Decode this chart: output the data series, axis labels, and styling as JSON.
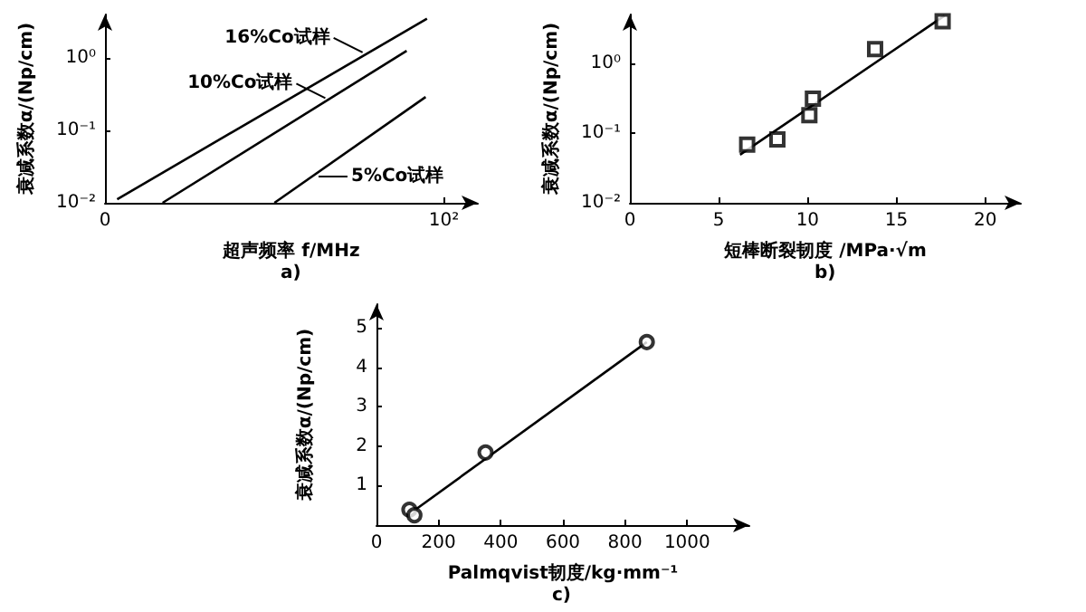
{
  "chart_data": [
    {
      "type": "line",
      "xlabel": "超声频率 f/MHz",
      "ylabel": "衰减系数α/(Np/cm)",
      "log": "y",
      "xlim": [
        0,
        110
      ],
      "ylim": [
        0.01,
        4
      ],
      "xticks": [
        0,
        {
          "value": 100,
          "label": "10²"
        }
      ],
      "yticks": [
        {
          "value": 0.01,
          "label": "10⁻²"
        },
        {
          "value": 0.1,
          "label": "10⁻¹"
        },
        {
          "value": 1,
          "label": "10⁰"
        }
      ],
      "series": [
        {
          "color": "#000000",
          "x": [
            3.6,
            95
          ],
          "values": [
            0.0112,
            3.5
          ]
        },
        {
          "color": "#000000",
          "x": [
            17,
            89
          ],
          "values": [
            0.01,
            1.26
          ]
        },
        {
          "color": "#000000",
          "x": [
            50,
            94.6
          ],
          "values": [
            0.01,
            0.29
          ]
        }
      ],
      "annotations": [
        {
          "text": "16%Co试样",
          "x": 76,
          "y": 1.2
        },
        {
          "text": "10%Co试样",
          "x": 65,
          "y": 0.28
        },
        {
          "text": "5%Co试样",
          "x": 63,
          "y": 0.023
        },
        "a)"
      ]
    },
    {
      "type": "scatter",
      "xlabel": "短棒断裂韧度 /MPa·√m",
      "ylabel": "衰减系数α/(Np/cm)",
      "log": "y",
      "xlim": [
        0,
        22
      ],
      "ylim": [
        0.01,
        5
      ],
      "xticks": [
        0,
        5,
        10,
        15,
        20
      ],
      "yticks": [
        {
          "value": 0.01,
          "label": "10⁻²"
        },
        {
          "value": 0.1,
          "label": "10⁻¹"
        },
        {
          "value": 1,
          "label": "10⁰"
        }
      ],
      "series": [
        {
          "marker": "square",
          "color": "#000000",
          "x": [
            6.6,
            8.3,
            10.1,
            10.3,
            13.8,
            17.6
          ],
          "values": [
            0.068,
            0.081,
            0.18,
            0.31,
            1.6,
            4.0
          ]
        },
        {
          "type": "line",
          "color": "#000000",
          "x": [
            6.2,
            17.7
          ],
          "values": [
            0.049,
            4.8
          ]
        }
      ],
      "annotations": [
        "b)"
      ]
    },
    {
      "type": "scatter",
      "xlabel": "Palmqvist韧度/kg·mm⁻¹",
      "ylabel": "衰减系数α/(Np/cm)",
      "xlim": [
        0,
        1200
      ],
      "ylim": [
        0,
        5.6
      ],
      "xticks": [
        0,
        200,
        400,
        600,
        800,
        1000
      ],
      "yticks": [
        1,
        2,
        3,
        4,
        5
      ],
      "series": [
        {
          "marker": "circle",
          "color": "#000000",
          "x": [
            106,
            122,
            351,
            870
          ],
          "values": [
            0.39,
            0.25,
            1.84,
            4.64
          ]
        },
        {
          "type": "line",
          "color": "#000000",
          "x": [
            118,
            870
          ],
          "values": [
            0.35,
            4.64
          ]
        }
      ],
      "annotations": [
        "c)"
      ]
    }
  ]
}
